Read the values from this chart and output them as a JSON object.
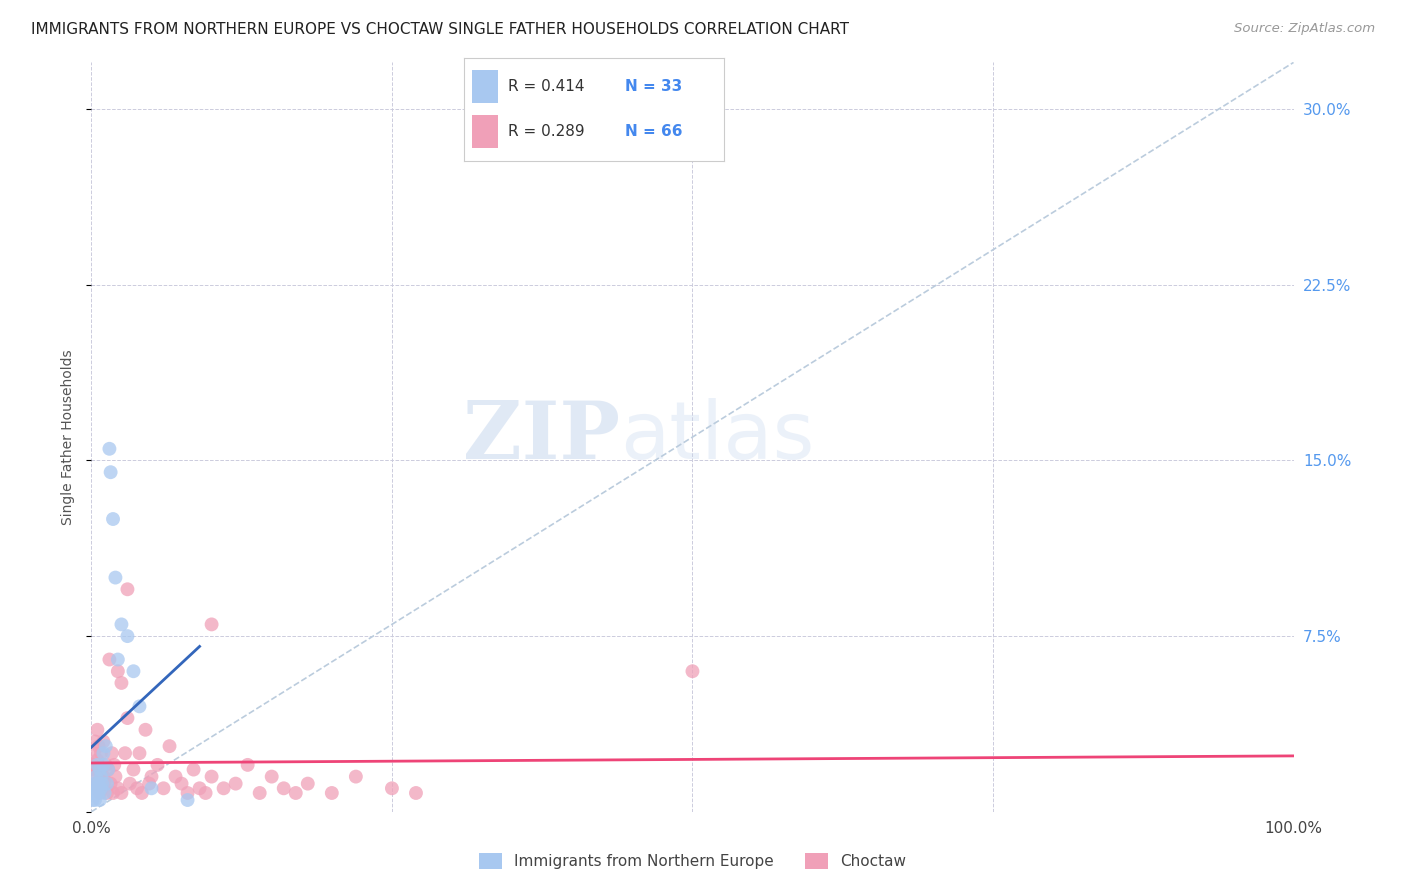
{
  "title": "IMMIGRANTS FROM NORTHERN EUROPE VS CHOCTAW SINGLE FATHER HOUSEHOLDS CORRELATION CHART",
  "source": "Source: ZipAtlas.com",
  "ylabel": "Single Father Households",
  "xlim": [
    0,
    1.0
  ],
  "ylim": [
    0,
    0.32
  ],
  "blue_color": "#A8C8F0",
  "blue_line_color": "#3366BB",
  "pink_color": "#F0A0B8",
  "pink_line_color": "#EE4477",
  "diagonal_color": "#BBCCDD",
  "legend_label1": "Immigrants from Northern Europe",
  "legend_label2": "Choctaw",
  "blue_x": [
    0.001,
    0.002,
    0.002,
    0.003,
    0.003,
    0.004,
    0.004,
    0.005,
    0.005,
    0.006,
    0.006,
    0.007,
    0.007,
    0.008,
    0.008,
    0.009,
    0.01,
    0.01,
    0.011,
    0.012,
    0.013,
    0.014,
    0.015,
    0.016,
    0.018,
    0.02,
    0.022,
    0.025,
    0.03,
    0.035,
    0.04,
    0.05,
    0.08
  ],
  "blue_y": [
    0.005,
    0.008,
    0.01,
    0.005,
    0.012,
    0.008,
    0.015,
    0.01,
    0.02,
    0.008,
    0.012,
    0.018,
    0.005,
    0.015,
    0.01,
    0.012,
    0.02,
    0.025,
    0.008,
    0.028,
    0.012,
    0.018,
    0.155,
    0.145,
    0.125,
    0.1,
    0.065,
    0.08,
    0.075,
    0.06,
    0.045,
    0.01,
    0.005
  ],
  "pink_x": [
    0.001,
    0.002,
    0.002,
    0.003,
    0.003,
    0.004,
    0.005,
    0.005,
    0.006,
    0.006,
    0.007,
    0.007,
    0.008,
    0.008,
    0.009,
    0.01,
    0.01,
    0.011,
    0.012,
    0.013,
    0.014,
    0.015,
    0.016,
    0.017,
    0.018,
    0.019,
    0.02,
    0.022,
    0.022,
    0.025,
    0.025,
    0.028,
    0.03,
    0.032,
    0.035,
    0.038,
    0.04,
    0.042,
    0.045,
    0.048,
    0.05,
    0.055,
    0.06,
    0.065,
    0.07,
    0.075,
    0.08,
    0.085,
    0.09,
    0.095,
    0.1,
    0.11,
    0.12,
    0.13,
    0.14,
    0.15,
    0.16,
    0.17,
    0.18,
    0.2,
    0.22,
    0.25,
    0.27,
    0.03,
    0.1,
    0.5
  ],
  "pink_y": [
    0.02,
    0.015,
    0.025,
    0.018,
    0.03,
    0.012,
    0.022,
    0.035,
    0.01,
    0.028,
    0.018,
    0.008,
    0.015,
    0.025,
    0.01,
    0.015,
    0.03,
    0.012,
    0.02,
    0.008,
    0.018,
    0.065,
    0.012,
    0.025,
    0.008,
    0.02,
    0.015,
    0.06,
    0.01,
    0.055,
    0.008,
    0.025,
    0.04,
    0.012,
    0.018,
    0.01,
    0.025,
    0.008,
    0.035,
    0.012,
    0.015,
    0.02,
    0.01,
    0.028,
    0.015,
    0.012,
    0.008,
    0.018,
    0.01,
    0.008,
    0.015,
    0.01,
    0.012,
    0.02,
    0.008,
    0.015,
    0.01,
    0.008,
    0.012,
    0.008,
    0.015,
    0.01,
    0.008,
    0.095,
    0.08,
    0.06
  ]
}
